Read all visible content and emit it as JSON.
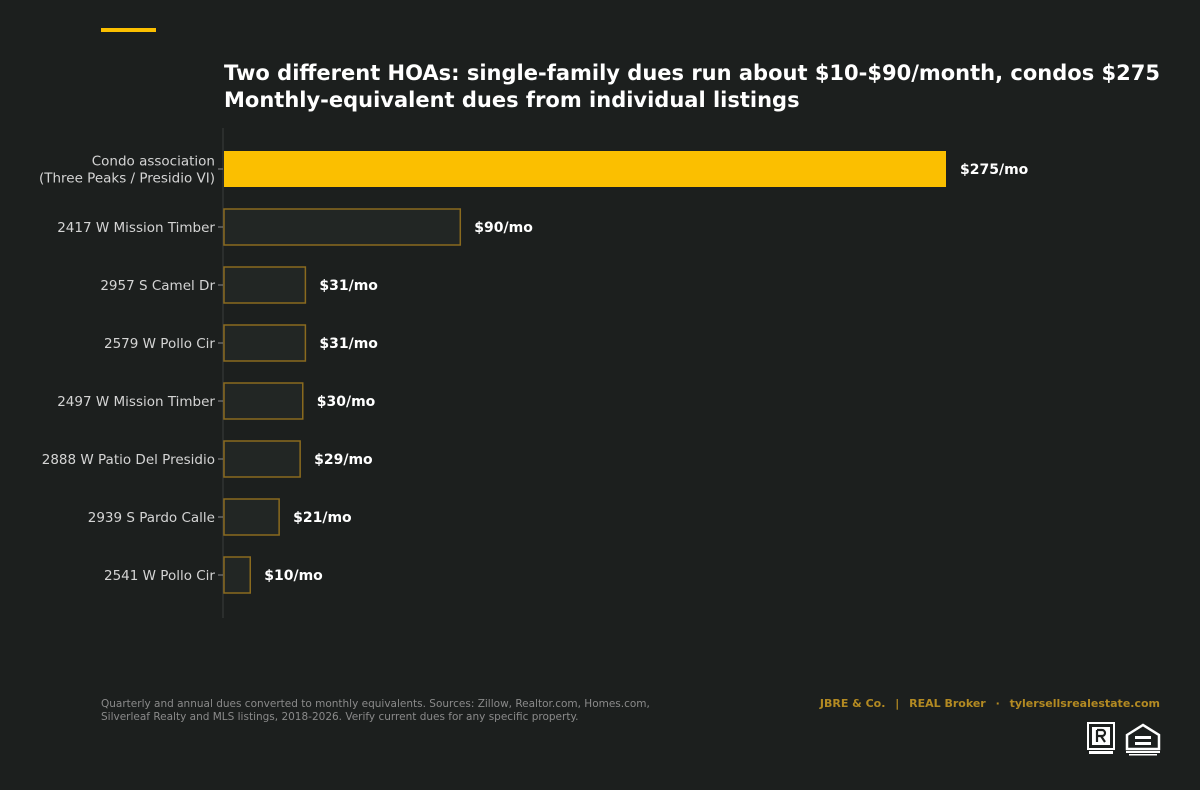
{
  "header": {
    "title": "Two different HOAs: single-family dues run about $10-$90/month, condos $275",
    "subtitle": "Monthly-equivalent dues from individual listings"
  },
  "chart_data": {
    "type": "bar",
    "orientation": "horizontal",
    "title": "Two different HOAs: single-family dues run about $10-$90/month, condos $275",
    "subtitle": "Monthly-equivalent dues from individual listings",
    "categories": [
      [
        "Condo association",
        "(Three Peaks / Presidio VI)"
      ],
      [
        "2417 W Mission Timber"
      ],
      [
        "2957 S Camel Dr"
      ],
      [
        "2579 W Pollo Cir"
      ],
      [
        "2497 W Mission Timber"
      ],
      [
        "2888 W Patio Del Presidio"
      ],
      [
        "2939 S Pardo Calle"
      ],
      [
        "2541 W Pollo Cir"
      ]
    ],
    "values": [
      275,
      90,
      31,
      31,
      30,
      29,
      21,
      10
    ],
    "data_labels": [
      "$275/mo",
      "$90/mo",
      "$31/mo",
      "$31/mo",
      "$30/mo",
      "$29/mo",
      "$21/mo",
      "$10/mo"
    ],
    "highlight_index": 0,
    "xlim": [
      0,
      275
    ],
    "grid": false,
    "legend": "none",
    "colors": {
      "highlight": "#fbbf00",
      "bar_fill": "#222624",
      "bar_outline": "#8a6a1e",
      "label": "#ffffff",
      "tick_label": "#d4d4d4",
      "axis": "#3a3d3c"
    }
  },
  "footer": {
    "footnote_line1": "Quarterly and annual dues converted to monthly equivalents. Sources: Zillow, Realtor.com, Homes.com,",
    "footnote_line2": "Silverleaf Realty and MLS listings, 2018-2026. Verify current dues for any specific property.",
    "brand_name": "JBRE & Co.",
    "brand_sep1": "|",
    "brand_broker": "REAL Broker",
    "brand_sep2": "·",
    "brand_site": "tylersellsrealestate.com",
    "logos": [
      "realtor-icon",
      "equal-housing-icon"
    ]
  }
}
